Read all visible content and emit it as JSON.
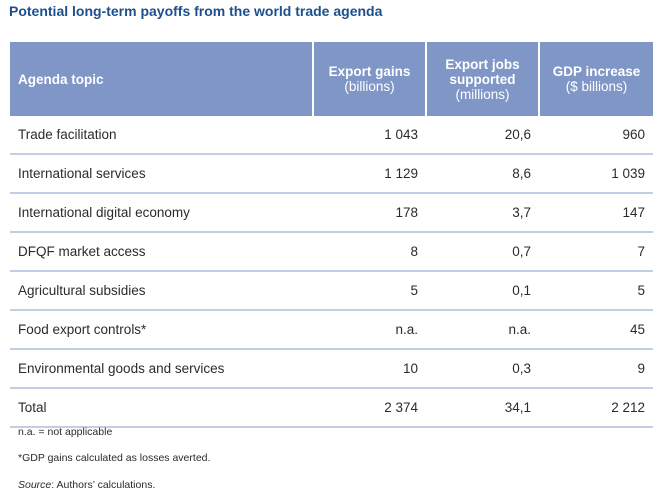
{
  "title": "Potential long-term payoffs from the world trade agenda",
  "table": {
    "headers": [
      {
        "label": "Agenda topic",
        "unit": ""
      },
      {
        "label": "Export gains",
        "unit": "(billions)"
      },
      {
        "label": "Export jobs supported",
        "unit": "(millions)"
      },
      {
        "label": "GDP increase",
        "unit": "($ billions)"
      }
    ],
    "rows": [
      [
        "Trade facilitation",
        "1 043",
        "20,6",
        "960"
      ],
      [
        "International services",
        "1 129",
        "8,6",
        "1 039"
      ],
      [
        "International digital economy",
        "178",
        "3,7",
        "147"
      ],
      [
        "DFQF market access",
        "8",
        "0,7",
        "7"
      ],
      [
        "Agricultural subsidies",
        "5",
        "0,1",
        "5"
      ],
      [
        "Food export controls*",
        "n.a.",
        "n.a.",
        "45"
      ],
      [
        "Environmental goods and services",
        "10",
        "0,3",
        "9"
      ],
      [
        "Total",
        "2 374",
        "34,1",
        "2 212"
      ]
    ]
  },
  "notes": {
    "na": "n.a. = not applicable",
    "gdp": "*GDP gains calculated as losses averted.",
    "source_label": "Source",
    "source_text": ": Authors’ calculations."
  },
  "colors": {
    "header_bg": "#7f96c6",
    "title": "#1c4f8c",
    "row_rule": "#c3cde6"
  }
}
